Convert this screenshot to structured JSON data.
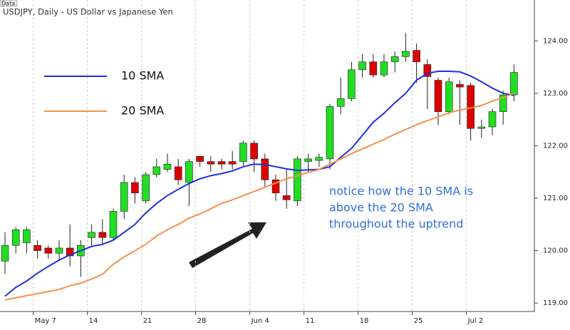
{
  "chart_data": {
    "type": "candlestick",
    "tab": "Data",
    "title": "USDJPY, Daily - US Dollar vs Japanese Yen",
    "categories": [
      null,
      null,
      null,
      "May 7",
      null,
      null,
      null,
      null,
      "14",
      null,
      null,
      null,
      null,
      "21",
      null,
      null,
      null,
      null,
      "28",
      null,
      null,
      null,
      null,
      "Jun 4",
      null,
      null,
      null,
      null,
      "11",
      null,
      null,
      null,
      null,
      "18",
      null,
      null,
      null,
      null,
      "25",
      null,
      null,
      null,
      null,
      "Jul 2",
      null,
      null,
      null,
      null
    ],
    "open": [
      119.8,
      120.1,
      120.15,
      120.1,
      120.05,
      119.95,
      120.05,
      119.9,
      120.25,
      120.35,
      120.25,
      120.75,
      121.3,
      120.95,
      121.45,
      121.55,
      121.6,
      121.3,
      121.8,
      121.7,
      121.7,
      121.7,
      121.7,
      122.05,
      121.75,
      121.35,
      121.05,
      120.95,
      121.7,
      121.72,
      121.75,
      122.75,
      122.9,
      123.45,
      123.6,
      123.35,
      123.6,
      123.7,
      123.82,
      123.55,
      123.25,
      122.65,
      123.17,
      123.15,
      122.33,
      122.36,
      122.65,
      122.97
    ],
    "high": [
      120.35,
      120.45,
      120.45,
      120.2,
      120.1,
      120.2,
      120.5,
      120.2,
      120.5,
      120.6,
      120.8,
      121.45,
      121.4,
      121.5,
      121.75,
      121.85,
      121.75,
      121.75,
      121.8,
      121.8,
      121.75,
      121.9,
      122.1,
      122.1,
      121.85,
      121.45,
      121.55,
      121.8,
      121.85,
      121.85,
      122.8,
      123.3,
      123.6,
      123.75,
      123.75,
      123.75,
      123.8,
      124.15,
      123.95,
      123.65,
      123.3,
      123.3,
      123.25,
      123.2,
      122.5,
      122.7,
      123.05,
      123.55
    ],
    "low": [
      119.55,
      119.95,
      119.95,
      119.85,
      119.85,
      119.8,
      119.7,
      119.5,
      120.1,
      120.1,
      120.2,
      120.6,
      120.9,
      120.9,
      121.4,
      121.5,
      121.25,
      120.85,
      121.6,
      121.5,
      121.55,
      121.55,
      121.6,
      121.5,
      121.2,
      120.95,
      120.8,
      120.85,
      121.5,
      121.6,
      121.55,
      122.6,
      122.85,
      123.3,
      123.3,
      123.3,
      123.4,
      123.6,
      123.2,
      122.7,
      122.4,
      122.6,
      122.4,
      122.1,
      122.15,
      122.2,
      122.4,
      122.85
    ],
    "close": [
      120.1,
      120.4,
      120.4,
      120.0,
      119.95,
      120.05,
      119.9,
      120.1,
      120.35,
      120.25,
      120.75,
      121.3,
      121.1,
      121.45,
      121.6,
      121.65,
      121.35,
      121.7,
      121.7,
      121.65,
      121.65,
      121.65,
      122.05,
      121.75,
      121.35,
      121.1,
      120.97,
      121.75,
      121.75,
      121.78,
      122.75,
      122.9,
      123.45,
      123.6,
      123.35,
      123.6,
      123.7,
      123.8,
      123.6,
      123.32,
      122.65,
      123.22,
      123.12,
      122.33,
      122.36,
      122.65,
      122.97,
      123.4
    ],
    "up_color": "#22dd22",
    "down_color": "#dd0000",
    "lines": [
      {
        "name": "10 SMA",
        "color": "#1f2fe0",
        "values": [
          119.13,
          119.3,
          119.42,
          119.57,
          119.7,
          119.82,
          119.92,
          120.0,
          120.08,
          120.12,
          120.2,
          120.35,
          120.5,
          120.72,
          120.9,
          121.05,
          121.17,
          121.28,
          121.37,
          121.43,
          121.47,
          121.52,
          121.6,
          121.65,
          121.64,
          121.6,
          121.56,
          121.53,
          121.54,
          121.55,
          121.6,
          121.78,
          121.95,
          122.2,
          122.45,
          122.62,
          122.82,
          123.0,
          123.25,
          123.38,
          123.42,
          123.42,
          123.41,
          123.33,
          123.22,
          123.1,
          123.0,
          122.96
        ]
      },
      {
        "name": "20 SMA",
        "color": "#f5914a",
        "values": [
          119.06,
          119.1,
          119.14,
          119.18,
          119.22,
          119.26,
          119.33,
          119.38,
          119.46,
          119.55,
          119.74,
          119.88,
          120.0,
          120.12,
          120.28,
          120.4,
          120.5,
          120.62,
          120.7,
          120.8,
          120.9,
          120.97,
          121.05,
          121.13,
          121.21,
          121.29,
          121.37,
          121.43,
          121.49,
          121.55,
          121.65,
          121.75,
          121.85,
          121.94,
          122.03,
          122.12,
          122.22,
          122.31,
          122.4,
          122.48,
          122.55,
          122.63,
          122.68,
          122.72,
          122.77,
          122.85,
          122.92,
          123.0
        ]
      }
    ],
    "ylim": [
      118.84,
      124.78
    ],
    "yticks": [
      {
        "value": 119,
        "label": "119.00"
      },
      {
        "value": 120,
        "label": "120.00"
      },
      {
        "value": 121,
        "label": "121.00"
      },
      {
        "value": 122,
        "label": "122.00"
      },
      {
        "value": 123,
        "label": "123.00"
      },
      {
        "value": 124,
        "label": "124.00"
      }
    ],
    "grid": true,
    "annotation": [
      "notice how the 10 SMA is",
      "above the 20 SMA",
      "throughout the uptrend"
    ]
  }
}
